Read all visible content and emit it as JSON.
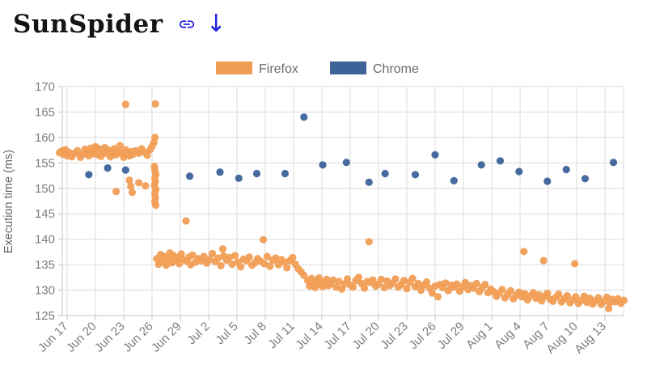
{
  "page": {
    "title": "SunSpider",
    "icons": [
      {
        "name": "link-icon",
        "glyph": "chain"
      },
      {
        "name": "down-arrow-icon",
        "glyph": "↓"
      }
    ]
  },
  "colors": {
    "firefox": "#f19e55",
    "chrome": "#3d6399",
    "icon_blue": "#2323e0",
    "grid": "#dcdcdc",
    "axis": "#c4c4c4",
    "tick_text": "#7d7d7d",
    "legend_text": "#6b6b6b",
    "axis_title": "#666666"
  },
  "chart_data": {
    "type": "scatter",
    "title": "SunSpider",
    "xlabel": "",
    "ylabel": "Execution time (ms)",
    "ylim": [
      125,
      170
    ],
    "yticks": [
      125,
      130,
      135,
      140,
      145,
      150,
      155,
      160,
      165,
      170
    ],
    "grid": true,
    "legend_position": "top",
    "x_unit": "days since Jun 17",
    "x_domain_days": [
      -0.51,
      58.97
    ],
    "xtick_days": [
      0,
      3,
      6,
      9,
      12,
      15,
      18,
      21,
      24,
      27,
      30,
      33,
      36,
      39,
      42,
      45,
      48,
      51,
      54,
      57
    ],
    "xtick_labels": [
      "Jun 17",
      "Jun 20",
      "Jun 23",
      "Jun 26",
      "Jun 29",
      "Jul 2",
      "Jul 5",
      "Jul 8",
      "Jul 11",
      "Jul 14",
      "Jul 17",
      "Jul 20",
      "Jul 23",
      "Jul 26",
      "Jul 29",
      "Aug 1",
      "Aug 4",
      "Aug 7",
      "Aug 10",
      "Aug 13"
    ],
    "series": [
      {
        "name": "Firefox",
        "color": "#f19e55",
        "points": [
          [
            -0.8,
            157.0
          ],
          [
            -0.6,
            157.3
          ],
          [
            -0.4,
            156.7
          ],
          [
            -0.2,
            157.6
          ],
          [
            0,
            156.4
          ],
          [
            0.2,
            157.1
          ],
          [
            0.5,
            156.2
          ],
          [
            0.8,
            156.9
          ],
          [
            1.1,
            157.4
          ],
          [
            1.4,
            156.1
          ],
          [
            1.7,
            156.7
          ],
          [
            1.9,
            157.7
          ],
          [
            2.1,
            157.1
          ],
          [
            2.3,
            156.4
          ],
          [
            2.5,
            157.9
          ],
          [
            2.7,
            156.8
          ],
          [
            2.9,
            157.3
          ],
          [
            3.0,
            158.2
          ],
          [
            3.2,
            156.6
          ],
          [
            3.4,
            157.8
          ],
          [
            3.6,
            156.3
          ],
          [
            3.8,
            157.1
          ],
          [
            4.0,
            158.0
          ],
          [
            4.2,
            156.9
          ],
          [
            4.4,
            157.5
          ],
          [
            4.6,
            156.2
          ],
          [
            4.8,
            157.0
          ],
          [
            5.0,
            157.8
          ],
          [
            5.2,
            156.6
          ],
          [
            5.4,
            157.3
          ],
          [
            5.6,
            158.4
          ],
          [
            5.8,
            156.9
          ],
          [
            6.0,
            156.1
          ],
          [
            6.2,
            157.6
          ],
          [
            6.4,
            157.0
          ],
          [
            6.6,
            156.4
          ],
          [
            6.8,
            157.2
          ],
          [
            7.0,
            156.7
          ],
          [
            7.3,
            157.4
          ],
          [
            7.6,
            156.9
          ],
          [
            7.9,
            157.8
          ],
          [
            8.2,
            157.1
          ],
          [
            8.5,
            156.5
          ],
          [
            8.8,
            157.6
          ],
          [
            9.0,
            158.3
          ],
          [
            9.2,
            159.0
          ],
          [
            6.2,
            166.5
          ],
          [
            9.35,
            166.6
          ],
          [
            9.3,
            160.0
          ],
          [
            5.2,
            149.4
          ],
          [
            6.6,
            151.6
          ],
          [
            6.75,
            150.4
          ],
          [
            6.9,
            149.2
          ],
          [
            7.6,
            151.1
          ],
          [
            8.3,
            150.5
          ],
          [
            9.25,
            154.3
          ],
          [
            9.3,
            153.5
          ],
          [
            9.4,
            152.8
          ],
          [
            9.3,
            152.0
          ],
          [
            9.35,
            151.3
          ],
          [
            9.25,
            150.6
          ],
          [
            9.4,
            149.8
          ],
          [
            9.3,
            149.0
          ],
          [
            9.35,
            148.2
          ],
          [
            9.3,
            147.4
          ],
          [
            9.4,
            146.7
          ],
          [
            9.5,
            136.2
          ],
          [
            9.7,
            135.1
          ],
          [
            9.9,
            137.0
          ],
          [
            10.1,
            135.6
          ],
          [
            10.3,
            136.6
          ],
          [
            10.5,
            134.9
          ],
          [
            10.7,
            136.1
          ],
          [
            10.9,
            137.3
          ],
          [
            11.1,
            135.4
          ],
          [
            11.3,
            136.8
          ],
          [
            11.5,
            135.9
          ],
          [
            11.7,
            136.4
          ],
          [
            11.9,
            135.2
          ],
          [
            12.1,
            137.1
          ],
          [
            12.3,
            136.0
          ],
          [
            12.6,
            143.6
          ],
          [
            12.7,
            135.7
          ],
          [
            12.9,
            136.5
          ],
          [
            13.1,
            135.0
          ],
          [
            13.3,
            136.9
          ],
          [
            13.6,
            135.5
          ],
          [
            13.9,
            136.2
          ],
          [
            14.2,
            135.8
          ],
          [
            14.5,
            136.6
          ],
          [
            14.8,
            135.3
          ],
          [
            15.1,
            136.0
          ],
          [
            15.4,
            137.2
          ],
          [
            15.7,
            135.6
          ],
          [
            16.0,
            136.3
          ],
          [
            16.3,
            134.8
          ],
          [
            16.5,
            138.1
          ],
          [
            16.6,
            136.7
          ],
          [
            16.9,
            135.9
          ],
          [
            17.2,
            136.4
          ],
          [
            17.5,
            135.1
          ],
          [
            17.8,
            136.8
          ],
          [
            18.1,
            135.5
          ],
          [
            18.4,
            134.6
          ],
          [
            18.7,
            136.1
          ],
          [
            19.0,
            135.8
          ],
          [
            19.3,
            136.5
          ],
          [
            19.6,
            134.9
          ],
          [
            19.9,
            135.4
          ],
          [
            20.2,
            136.2
          ],
          [
            20.5,
            135.7
          ],
          [
            20.8,
            139.9
          ],
          [
            20.9,
            135.2
          ],
          [
            21.2,
            136.6
          ],
          [
            21.5,
            134.7
          ],
          [
            21.8,
            135.9
          ],
          [
            22.1,
            136.3
          ],
          [
            22.4,
            135.0
          ],
          [
            22.7,
            136.0
          ],
          [
            23.0,
            135.5
          ],
          [
            23.3,
            134.4
          ],
          [
            23.6,
            135.8
          ],
          [
            23.9,
            136.4
          ],
          [
            24.2,
            135.1
          ],
          [
            24.5,
            134.2
          ],
          [
            24.8,
            133.6
          ],
          [
            25.1,
            132.9
          ],
          [
            25.5,
            131.9
          ],
          [
            25.7,
            130.8
          ],
          [
            25.9,
            132.3
          ],
          [
            26.1,
            131.4
          ],
          [
            26.3,
            130.5
          ],
          [
            26.5,
            131.8
          ],
          [
            26.7,
            132.4
          ],
          [
            26.9,
            131.1
          ],
          [
            27.1,
            130.7
          ],
          [
            27.3,
            131.6
          ],
          [
            27.5,
            132.1
          ],
          [
            27.7,
            130.9
          ],
          [
            27.9,
            131.3
          ],
          [
            28.2,
            132.0
          ],
          [
            28.5,
            130.6
          ],
          [
            28.8,
            131.7
          ],
          [
            29.1,
            130.2
          ],
          [
            29.4,
            131.2
          ],
          [
            29.7,
            132.2
          ],
          [
            30.0,
            131.0
          ],
          [
            30.3,
            130.6
          ],
          [
            30.6,
            131.9
          ],
          [
            30.9,
            132.5
          ],
          [
            31.2,
            131.3
          ],
          [
            31.5,
            130.4
          ],
          [
            31.8,
            131.7
          ],
          [
            32.0,
            139.5
          ],
          [
            32.1,
            131.5
          ],
          [
            32.4,
            132.0
          ],
          [
            32.7,
            130.8
          ],
          [
            33.0,
            131.2
          ],
          [
            33.3,
            132.1
          ],
          [
            33.6,
            130.5
          ],
          [
            33.9,
            131.8
          ],
          [
            34.2,
            130.9
          ],
          [
            34.5,
            131.4
          ],
          [
            34.8,
            132.2
          ],
          [
            35.1,
            130.6
          ],
          [
            35.4,
            131.1
          ],
          [
            35.7,
            131.9
          ],
          [
            36.0,
            130.3
          ],
          [
            36.3,
            131.5
          ],
          [
            36.6,
            132.3
          ],
          [
            36.9,
            130.7
          ],
          [
            37.2,
            131.3
          ],
          [
            37.5,
            130.0
          ],
          [
            37.8,
            131.0
          ],
          [
            38.1,
            131.6
          ],
          [
            38.4,
            130.4
          ],
          [
            38.7,
            129.4
          ],
          [
            39.0,
            130.8
          ],
          [
            39.3,
            128.7
          ],
          [
            39.5,
            131.1
          ],
          [
            39.8,
            130.5
          ],
          [
            40.1,
            131.4
          ],
          [
            40.4,
            129.9
          ],
          [
            40.7,
            131.0
          ],
          [
            41.0,
            130.6
          ],
          [
            41.3,
            131.2
          ],
          [
            41.6,
            129.8
          ],
          [
            41.9,
            130.7
          ],
          [
            42.2,
            131.5
          ],
          [
            42.5,
            130.1
          ],
          [
            42.8,
            130.9
          ],
          [
            43.1,
            130.4
          ],
          [
            43.4,
            131.3
          ],
          [
            43.7,
            129.7
          ],
          [
            44.0,
            130.5
          ],
          [
            44.3,
            131.1
          ],
          [
            44.6,
            129.5
          ],
          [
            44.9,
            130.2
          ],
          [
            45.2,
            129.7
          ],
          [
            45.5,
            128.8
          ],
          [
            45.8,
            129.4
          ],
          [
            46.1,
            130.1
          ],
          [
            46.4,
            128.5
          ],
          [
            46.7,
            129.2
          ],
          [
            47.0,
            129.9
          ],
          [
            47.3,
            128.3
          ],
          [
            47.6,
            129.0
          ],
          [
            47.9,
            129.6
          ],
          [
            48.2,
            128.7
          ],
          [
            48.4,
            137.6
          ],
          [
            48.5,
            129.3
          ],
          [
            48.8,
            128.1
          ],
          [
            49.1,
            128.9
          ],
          [
            49.4,
            129.5
          ],
          [
            49.7,
            128.4
          ],
          [
            50.0,
            129.1
          ],
          [
            50.3,
            127.9
          ],
          [
            50.5,
            135.8
          ],
          [
            50.6,
            128.8
          ],
          [
            50.9,
            129.4
          ],
          [
            51.2,
            128.2
          ],
          [
            51.5,
            127.8
          ],
          [
            51.8,
            128.6
          ],
          [
            52.1,
            129.2
          ],
          [
            52.4,
            127.7
          ],
          [
            52.7,
            128.3
          ],
          [
            53.0,
            128.9
          ],
          [
            53.3,
            127.5
          ],
          [
            53.6,
            128.1
          ],
          [
            53.8,
            135.2
          ],
          [
            53.9,
            128.7
          ],
          [
            54.2,
            127.4
          ],
          [
            54.5,
            128.0
          ],
          [
            54.8,
            128.8
          ],
          [
            55.1,
            127.6
          ],
          [
            55.4,
            128.4
          ],
          [
            55.7,
            127.3
          ],
          [
            56.0,
            127.9
          ],
          [
            56.3,
            128.5
          ],
          [
            56.6,
            127.2
          ],
          [
            56.9,
            127.8
          ],
          [
            57.2,
            128.6
          ],
          [
            57.4,
            126.4
          ],
          [
            57.5,
            127.5
          ],
          [
            57.8,
            128.2
          ],
          [
            58.1,
            127.7
          ],
          [
            58.4,
            128.3
          ],
          [
            58.7,
            127.4
          ],
          [
            59.0,
            128.0
          ]
        ]
      },
      {
        "name": "Chrome",
        "color": "#3d6399",
        "points": [
          [
            2.3,
            152.7
          ],
          [
            4.3,
            154.0
          ],
          [
            6.2,
            153.6
          ],
          [
            13.0,
            152.4
          ],
          [
            16.2,
            153.2
          ],
          [
            18.2,
            152.0
          ],
          [
            20.1,
            152.9
          ],
          [
            23.1,
            152.9
          ],
          [
            25.1,
            164.0
          ],
          [
            27.1,
            154.6
          ],
          [
            29.6,
            155.1
          ],
          [
            32.0,
            151.2
          ],
          [
            33.7,
            152.9
          ],
          [
            36.9,
            152.7
          ],
          [
            39.0,
            156.6
          ],
          [
            41.0,
            151.5
          ],
          [
            43.9,
            154.6
          ],
          [
            45.9,
            155.4
          ],
          [
            47.9,
            153.3
          ],
          [
            50.9,
            151.4
          ],
          [
            52.9,
            153.7
          ],
          [
            54.9,
            151.9
          ],
          [
            57.9,
            155.1
          ]
        ]
      }
    ]
  }
}
